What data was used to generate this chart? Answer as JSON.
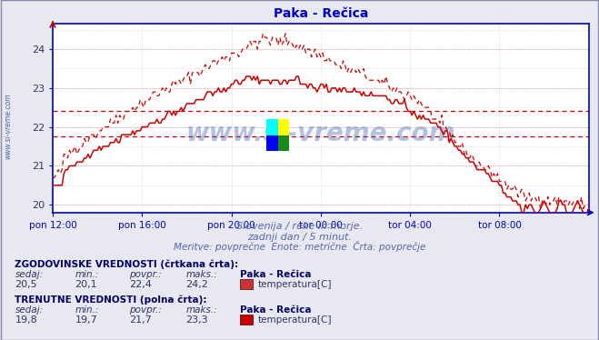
{
  "title": "Paka - Rečica",
  "title_color": "#0000cc",
  "title_fontsize": 10,
  "bg_color": "#e8e8f0",
  "plot_bg_color": "#ffffff",
  "grid_color": "#ddaaaa",
  "grid_color2": "#ccbbbb",
  "axis_color": "#0000cc",
  "ylim": [
    19.8,
    24.65
  ],
  "yticks": [
    20,
    21,
    22,
    23,
    24
  ],
  "xtick_labels": [
    "pon 12:00",
    "pon 16:00",
    "pon 20:00",
    "tor 00:00",
    "tor 04:00",
    "tor 08:00"
  ],
  "xtick_positions": [
    0,
    48,
    96,
    144,
    192,
    240
  ],
  "hline1": 22.4,
  "hline2": 21.75,
  "hline_color": "#cc0000",
  "text_line1": "Slovenija / reke in morje.",
  "text_line2": "zadnji dan / 5 minut.",
  "text_line3": "Meritve: povprečne  Enote: metrične  Črta: povprečje",
  "watermark": "www.si-vreme.com",
  "side_label": "www.si-vreme.com",
  "legend_title1": "ZGODOVINSKE VREDNOSTI (črtkana črta):",
  "legend_title2": "TRENUTNE VREDNOSTI (polna črta):",
  "leg_headers": [
    "sedaj:",
    "min.:",
    "povpr.:",
    "maks.:"
  ],
  "leg1_vals": [
    "20,5",
    "20,1",
    "22,4",
    "24,2"
  ],
  "leg2_vals": [
    "19,8",
    "19,7",
    "21,7",
    "23,3"
  ],
  "series_label": "Paka - Rečica",
  "temp_label": "temperatura[C]",
  "dashed_color": "#cc0000",
  "solid_color": "#cc0000",
  "num_points": 289,
  "outer_border_color": "#8888aa"
}
